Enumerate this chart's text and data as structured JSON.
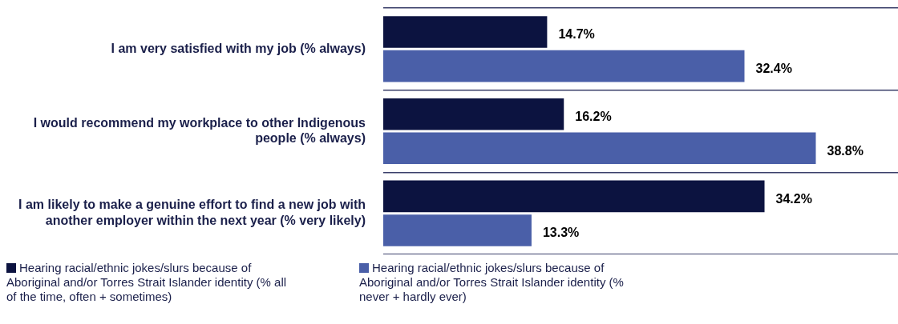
{
  "chart_data": {
    "type": "bar",
    "orientation": "horizontal",
    "categories": [
      "I am very satisfied with my job (% always)",
      "I would recommend my workplace to other Indigenous people (% always)",
      "I am likely to make a genuine effort to find a new job with another employer within the next year (% very likely)"
    ],
    "series": [
      {
        "name": "Hearing racial/ethnic jokes/slurs because of Aboriginal and/or Torres Strait Islander identity (% all of the time, often + sometimes)",
        "color": "#0c1340",
        "values": [
          14.7,
          16.2,
          34.2
        ],
        "value_labels": [
          "14.7%",
          "16.2%",
          "34.2%"
        ]
      },
      {
        "name": "Hearing racial/ethnic jokes/slurs because of Aboriginal and/or Torres Strait Islander identity (% never + hardly ever)",
        "color": "#4a5fa8",
        "values": [
          32.4,
          38.8,
          13.3
        ],
        "value_labels": [
          "32.4%",
          "38.8%",
          "13.3%"
        ]
      }
    ],
    "grid": "y",
    "legend": "bottom",
    "tick_labels": "y"
  }
}
